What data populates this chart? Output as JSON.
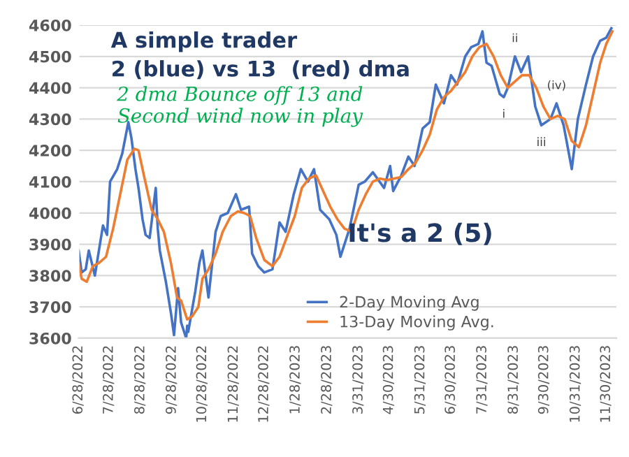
{
  "chart_data": {
    "type": "line",
    "title": "A simple trader\n2 (blue) vs 13  (red) dma",
    "annotations": [
      "2 dma Bounce off 13 and\nSecond wind now in play",
      "It's a 2 (5)",
      {
        "text": "i",
        "x": "2023-08-21",
        "y": 4370
      },
      {
        "text": "ii",
        "x": "2023-09-01",
        "y": 4500
      },
      {
        "text": "iii",
        "x": "2023-09-27",
        "y": 4280
      },
      {
        "text": "(iv)",
        "x": "2023-10-12",
        "y": 4350
      }
    ],
    "series": [
      {
        "name": "2-Day Moving Avg",
        "color": "#4472c4",
        "x": [
          "2022-06-28",
          "2022-07-01",
          "2022-07-05",
          "2022-07-08",
          "2022-07-14",
          "2022-07-19",
          "2022-07-22",
          "2022-07-26",
          "2022-07-29",
          "2022-08-05",
          "2022-08-10",
          "2022-08-16",
          "2022-08-19",
          "2022-08-23",
          "2022-08-26",
          "2022-08-30",
          "2022-09-02",
          "2022-09-06",
          "2022-09-12",
          "2022-09-14",
          "2022-09-16",
          "2022-09-22",
          "2022-09-27",
          "2022-09-30",
          "2022-10-04",
          "2022-10-07",
          "2022-10-12",
          "2022-10-13",
          "2022-10-14",
          "2022-10-21",
          "2022-10-25",
          "2022-10-28",
          "2022-11-03",
          "2022-11-10",
          "2022-11-15",
          "2022-11-22",
          "2022-11-30",
          "2022-12-05",
          "2022-12-13",
          "2022-12-16",
          "2022-12-22",
          "2022-12-28",
          "2023-01-05",
          "2023-01-12",
          "2023-01-18",
          "2023-01-26",
          "2023-02-02",
          "2023-02-09",
          "2023-02-15",
          "2023-02-21",
          "2023-03-02",
          "2023-03-09",
          "2023-03-13",
          "2023-03-22",
          "2023-03-31",
          "2023-04-06",
          "2023-04-14",
          "2023-04-25",
          "2023-05-01",
          "2023-05-04",
          "2023-05-12",
          "2023-05-19",
          "2023-05-25",
          "2023-06-02",
          "2023-06-09",
          "2023-06-15",
          "2023-06-23",
          "2023-06-30",
          "2023-07-06",
          "2023-07-14",
          "2023-07-20",
          "2023-07-27",
          "2023-07-31",
          "2023-08-04",
          "2023-08-09",
          "2023-08-17",
          "2023-08-21",
          "2023-08-25",
          "2023-09-01",
          "2023-09-07",
          "2023-09-14",
          "2023-09-21",
          "2023-09-27",
          "2023-10-06",
          "2023-10-12",
          "2023-10-19",
          "2023-10-27",
          "2023-11-02",
          "2023-11-10",
          "2023-11-17",
          "2023-11-24",
          "2023-11-30",
          "2023-12-05"
        ],
        "values": [
          3880,
          3810,
          3820,
          3880,
          3800,
          3900,
          3960,
          3930,
          4100,
          4140,
          4190,
          4290,
          4240,
          4140,
          4080,
          3980,
          3930,
          3920,
          4080,
          3950,
          3880,
          3780,
          3680,
          3610,
          3760,
          3650,
          3600,
          3640,
          3620,
          3750,
          3840,
          3880,
          3730,
          3940,
          3990,
          4000,
          4060,
          4010,
          4020,
          3870,
          3830,
          3810,
          3820,
          3970,
          3940,
          4060,
          4140,
          4100,
          4140,
          4010,
          3980,
          3930,
          3860,
          3950,
          4090,
          4100,
          4130,
          4080,
          4150,
          4070,
          4120,
          4180,
          4150,
          4270,
          4290,
          4410,
          4350,
          4440,
          4410,
          4500,
          4530,
          4540,
          4580,
          4480,
          4470,
          4380,
          4370,
          4400,
          4500,
          4450,
          4500,
          4340,
          4280,
          4300,
          4350,
          4280,
          4140,
          4300,
          4410,
          4500,
          4550,
          4560,
          4590
        ]
      },
      {
        "name": "13-Day Moving Avg.",
        "color": "#ed7d31",
        "x": [
          "2022-06-28",
          "2022-07-01",
          "2022-07-06",
          "2022-07-12",
          "2022-07-18",
          "2022-07-25",
          "2022-08-01",
          "2022-08-08",
          "2022-08-15",
          "2022-08-22",
          "2022-08-26",
          "2022-09-01",
          "2022-09-08",
          "2022-09-14",
          "2022-09-20",
          "2022-09-27",
          "2022-10-03",
          "2022-10-07",
          "2022-10-13",
          "2022-10-18",
          "2022-10-24",
          "2022-10-28",
          "2022-11-03",
          "2022-11-10",
          "2022-11-17",
          "2022-11-25",
          "2022-12-02",
          "2022-12-08",
          "2022-12-14",
          "2022-12-20",
          "2022-12-28",
          "2023-01-05",
          "2023-01-12",
          "2023-01-20",
          "2023-01-27",
          "2023-02-03",
          "2023-02-10",
          "2023-02-17",
          "2023-02-24",
          "2023-03-03",
          "2023-03-10",
          "2023-03-17",
          "2023-03-24",
          "2023-03-31",
          "2023-04-07",
          "2023-04-14",
          "2023-04-21",
          "2023-04-28",
          "2023-05-05",
          "2023-05-12",
          "2023-05-19",
          "2023-05-26",
          "2023-06-02",
          "2023-06-09",
          "2023-06-16",
          "2023-06-23",
          "2023-06-30",
          "2023-07-07",
          "2023-07-14",
          "2023-07-21",
          "2023-07-28",
          "2023-08-04",
          "2023-08-11",
          "2023-08-18",
          "2023-08-25",
          "2023-09-01",
          "2023-09-08",
          "2023-09-15",
          "2023-09-22",
          "2023-09-29",
          "2023-10-06",
          "2023-10-13",
          "2023-10-20",
          "2023-10-27",
          "2023-11-03",
          "2023-11-10",
          "2023-11-17",
          "2023-11-24",
          "2023-11-30",
          "2023-12-06"
        ],
        "values": [
          3840,
          3790,
          3780,
          3830,
          3840,
          3860,
          3950,
          4060,
          4170,
          4205,
          4200,
          4110,
          4010,
          3980,
          3940,
          3840,
          3730,
          3720,
          3660,
          3670,
          3700,
          3790,
          3820,
          3870,
          3940,
          3990,
          4005,
          4000,
          3990,
          3920,
          3850,
          3830,
          3860,
          3930,
          3990,
          4080,
          4110,
          4120,
          4070,
          4020,
          3980,
          3950,
          3940,
          4010,
          4060,
          4100,
          4110,
          4105,
          4110,
          4115,
          4140,
          4160,
          4200,
          4250,
          4330,
          4370,
          4390,
          4420,
          4450,
          4500,
          4530,
          4540,
          4500,
          4440,
          4400,
          4420,
          4440,
          4440,
          4400,
          4340,
          4300,
          4310,
          4300,
          4230,
          4210,
          4280,
          4380,
          4480,
          4540,
          4580
        ]
      }
    ],
    "xlim": [
      "2022-06-28",
      "2023-12-10"
    ],
    "xticks": [
      {
        "value": "2022-06-28",
        "label": "6/28/2022"
      },
      {
        "value": "2022-07-28",
        "label": "7/28/2022"
      },
      {
        "value": "2022-08-28",
        "label": "8/28/2022"
      },
      {
        "value": "2022-09-28",
        "label": "9/28/2022"
      },
      {
        "value": "2022-10-28",
        "label": "10/28/2022"
      },
      {
        "value": "2022-11-28",
        "label": "11/28/2022"
      },
      {
        "value": "2022-12-28",
        "label": "12/28/2022"
      },
      {
        "value": "2023-01-28",
        "label": "1/28/2023"
      },
      {
        "value": "2023-02-28",
        "label": "2/28/2023"
      },
      {
        "value": "2023-03-31",
        "label": "3/31/2023"
      },
      {
        "value": "2023-04-30",
        "label": "4/30/2023"
      },
      {
        "value": "2023-05-31",
        "label": "5/31/2023"
      },
      {
        "value": "2023-06-30",
        "label": "6/30/2023"
      },
      {
        "value": "2023-07-31",
        "label": "7/31/2023"
      },
      {
        "value": "2023-08-31",
        "label": "8/31/2023"
      },
      {
        "value": "2023-09-30",
        "label": "9/30/2023"
      },
      {
        "value": "2023-10-31",
        "label": "10/31/2023"
      },
      {
        "value": "2023-11-30",
        "label": "11/30/2023"
      }
    ],
    "ylim": [
      3600,
      4600
    ],
    "yticks": [
      3600,
      3700,
      3800,
      3900,
      4000,
      4100,
      4200,
      4300,
      4400,
      4500,
      4600
    ],
    "grid": "y",
    "legend": "bottom",
    "marker": "none",
    "line_style": "solid"
  }
}
